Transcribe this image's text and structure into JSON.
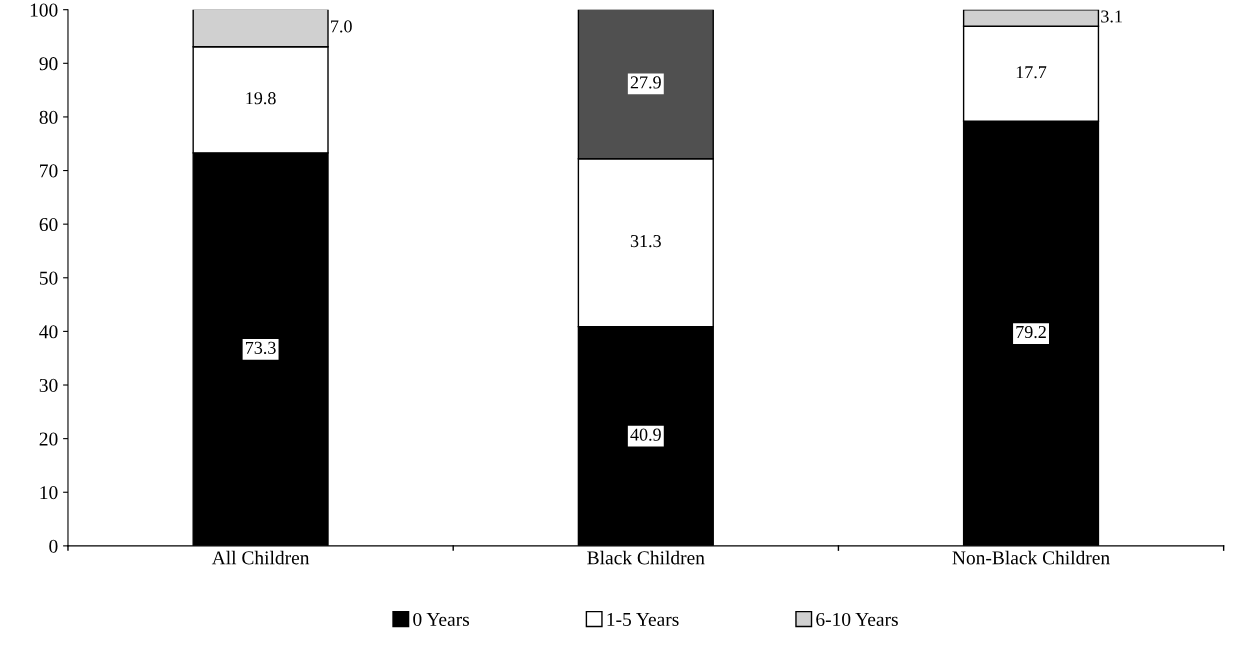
{
  "chart_data": {
    "type": "bar",
    "stacked": true,
    "categories": [
      "All Children",
      "Black Children",
      "Non-Black Children"
    ],
    "series": [
      {
        "name": "0 Years",
        "color": "#000000",
        "values": [
          73.3,
          40.9,
          79.2
        ],
        "value_labels": [
          "73.3",
          "40.9",
          "79.2"
        ]
      },
      {
        "name": "1-5 Years",
        "color": "#ffffff",
        "values": [
          19.8,
          31.3,
          17.7
        ],
        "value_labels": [
          "19.8",
          "31.3",
          "17.7"
        ]
      },
      {
        "name": "6-10 Years",
        "color": "#d0d0d0",
        "colors": [
          "#d0d0d0",
          "#505050",
          "#d0d0d0"
        ],
        "values": [
          7.0,
          27.9,
          3.1
        ],
        "value_labels": [
          "7.0",
          "27.9",
          "3.1"
        ]
      }
    ],
    "ylim": [
      0,
      100
    ],
    "yticks": [
      0,
      10,
      20,
      30,
      40,
      50,
      60,
      70,
      80,
      90,
      100
    ],
    "grid": false,
    "legend": "bottom"
  }
}
